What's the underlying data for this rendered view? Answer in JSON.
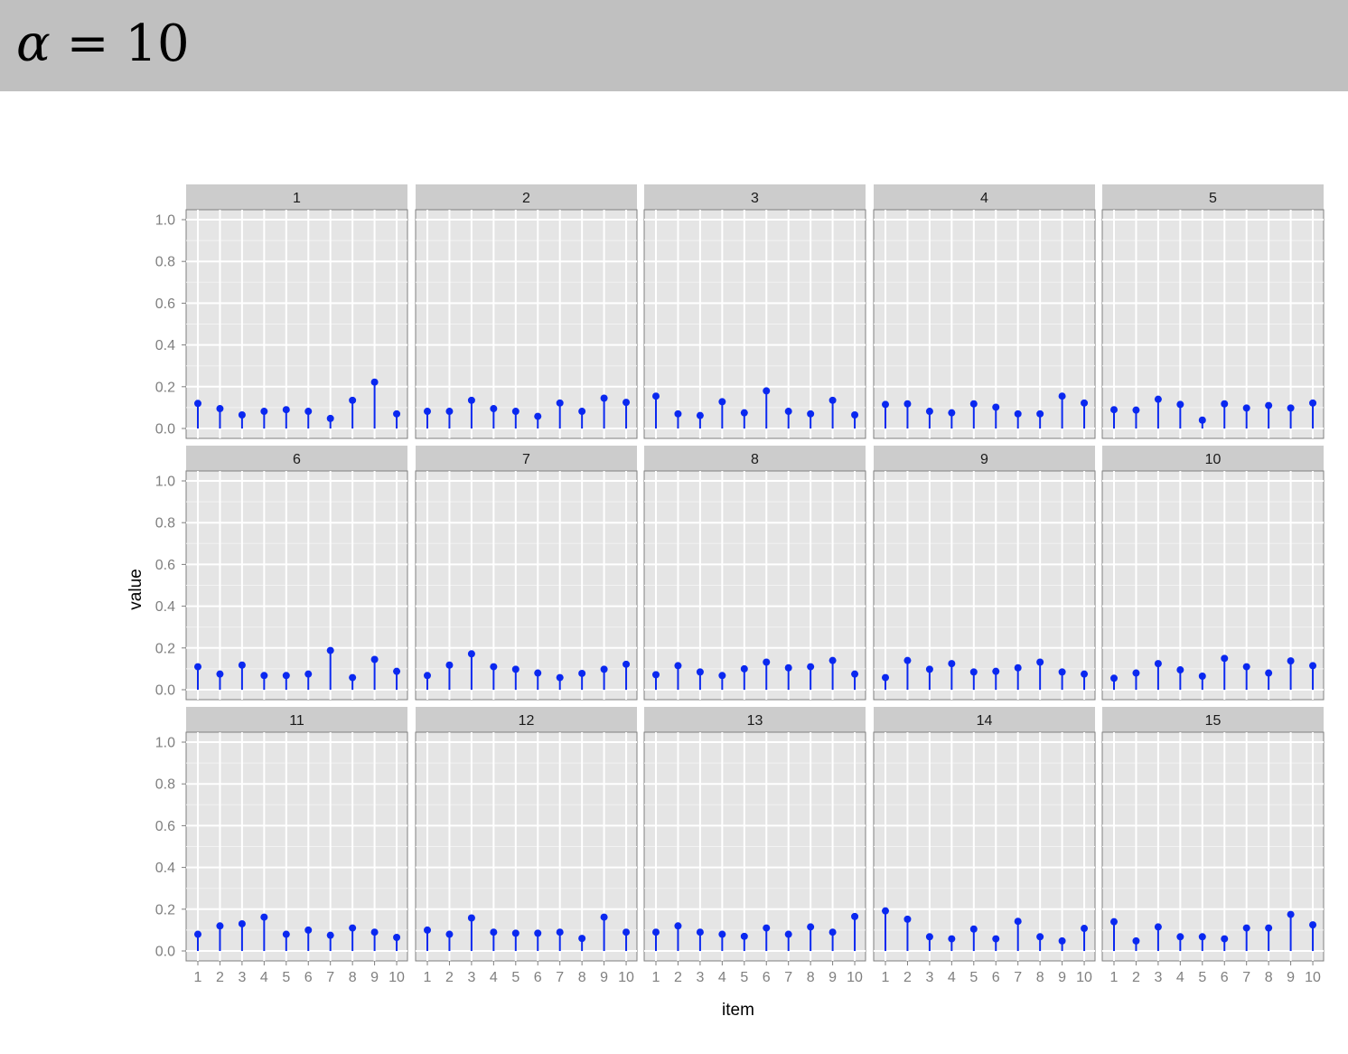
{
  "page_title": {
    "symbol": "α",
    "rest": " = 10"
  },
  "chart_data": {
    "type": "lollipop-facets",
    "xlabel": "item",
    "ylabel": "value",
    "ylim": [
      0,
      1.05
    ],
    "y_ticks": [
      "0.0",
      "0.2",
      "0.4",
      "0.6",
      "0.8",
      "1.0"
    ],
    "y_tick_values": [
      0,
      0.2,
      0.4,
      0.6,
      0.8,
      1.0
    ],
    "x_categories": [
      "1",
      "2",
      "3",
      "4",
      "5",
      "6",
      "7",
      "8",
      "9",
      "10"
    ],
    "grid": true,
    "point_color": "#0a28f0",
    "facets": [
      {
        "label": "1",
        "values": [
          0.12,
          0.095,
          0.065,
          0.082,
          0.09,
          0.082,
          0.048,
          0.135,
          0.222,
          0.07
        ]
      },
      {
        "label": "2",
        "values": [
          0.082,
          0.082,
          0.135,
          0.095,
          0.082,
          0.058,
          0.122,
          0.082,
          0.145,
          0.125
        ]
      },
      {
        "label": "3",
        "values": [
          0.155,
          0.07,
          0.062,
          0.128,
          0.075,
          0.18,
          0.082,
          0.07,
          0.135,
          0.065
        ]
      },
      {
        "label": "4",
        "values": [
          0.115,
          0.118,
          0.082,
          0.075,
          0.118,
          0.102,
          0.07,
          0.07,
          0.155,
          0.122
        ]
      },
      {
        "label": "5",
        "values": [
          0.09,
          0.088,
          0.14,
          0.115,
          0.04,
          0.118,
          0.098,
          0.11,
          0.098,
          0.122
        ]
      },
      {
        "label": "6",
        "values": [
          0.11,
          0.075,
          0.118,
          0.068,
          0.068,
          0.075,
          0.188,
          0.058,
          0.145,
          0.088
        ]
      },
      {
        "label": "7",
        "values": [
          0.068,
          0.118,
          0.172,
          0.11,
          0.098,
          0.08,
          0.058,
          0.078,
          0.098,
          0.122
        ]
      },
      {
        "label": "8",
        "values": [
          0.072,
          0.115,
          0.085,
          0.068,
          0.1,
          0.132,
          0.105,
          0.11,
          0.14,
          0.075
        ]
      },
      {
        "label": "9",
        "values": [
          0.058,
          0.14,
          0.098,
          0.125,
          0.085,
          0.088,
          0.105,
          0.132,
          0.085,
          0.075
        ]
      },
      {
        "label": "10",
        "values": [
          0.055,
          0.08,
          0.125,
          0.095,
          0.065,
          0.15,
          0.11,
          0.08,
          0.138,
          0.115
        ]
      },
      {
        "label": "11",
        "values": [
          0.08,
          0.12,
          0.13,
          0.162,
          0.08,
          0.1,
          0.075,
          0.11,
          0.09,
          0.065
        ]
      },
      {
        "label": "12",
        "values": [
          0.1,
          0.08,
          0.158,
          0.09,
          0.085,
          0.085,
          0.09,
          0.06,
          0.162,
          0.09
        ]
      },
      {
        "label": "13",
        "values": [
          0.09,
          0.12,
          0.09,
          0.08,
          0.07,
          0.11,
          0.08,
          0.115,
          0.09,
          0.165
        ]
      },
      {
        "label": "14",
        "values": [
          0.192,
          0.152,
          0.068,
          0.058,
          0.105,
          0.058,
          0.142,
          0.068,
          0.048,
          0.108
        ]
      },
      {
        "label": "15",
        "values": [
          0.14,
          0.048,
          0.115,
          0.068,
          0.068,
          0.058,
          0.11,
          0.11,
          0.175,
          0.125
        ]
      }
    ]
  }
}
